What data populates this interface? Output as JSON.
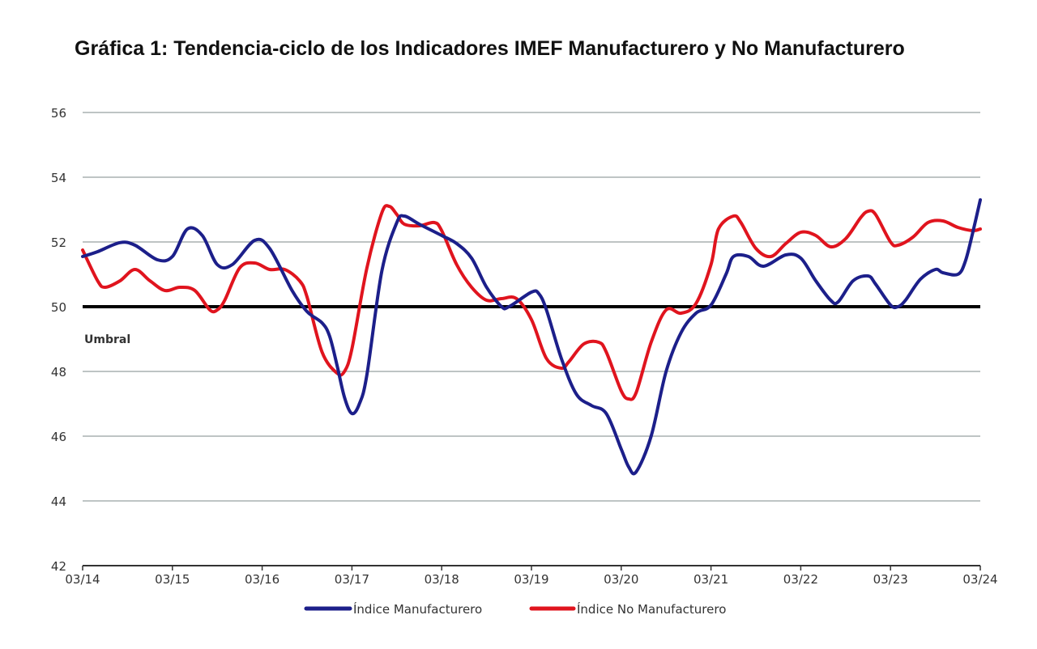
{
  "title": "Gráfica 1: Tendencia-ciclo de los Indicadores IMEF Manufacturero y No Manufacturero",
  "chart_data": {
    "type": "line",
    "title": "Gráfica 1: Tendencia-ciclo de los Indicadores IMEF Manufacturero y No Manufacturero",
    "xlabel": "",
    "ylabel": "",
    "x_unit": "months since 03/14",
    "xlim": [
      0,
      120
    ],
    "ylim": [
      42,
      56
    ],
    "x_ticks": [
      {
        "value": 0,
        "label": "03/14"
      },
      {
        "value": 12,
        "label": "03/15"
      },
      {
        "value": 24,
        "label": "03/16"
      },
      {
        "value": 36,
        "label": "03/17"
      },
      {
        "value": 48,
        "label": "03/18"
      },
      {
        "value": 60,
        "label": "03/19"
      },
      {
        "value": 72,
        "label": "03/20"
      },
      {
        "value": 84,
        "label": "03/21"
      },
      {
        "value": 96,
        "label": "03/22"
      },
      {
        "value": 108,
        "label": "03/23"
      },
      {
        "value": 120,
        "label": "03/24"
      }
    ],
    "y_ticks": [
      42,
      44,
      46,
      48,
      50,
      52,
      54,
      56
    ],
    "grid": true,
    "threshold": {
      "value": 50,
      "label": "Umbral"
    },
    "legend_position": "bottom",
    "series": [
      {
        "name": "Índice Manufacturero",
        "color": "#1c1f8a",
        "x": [
          0,
          2,
          5,
          7,
          10,
          12,
          14,
          16,
          18,
          20,
          23,
          25,
          28,
          30,
          32,
          33,
          34,
          35,
          36,
          37,
          38,
          40,
          42,
          43,
          45,
          48,
          50,
          52,
          54,
          56,
          57,
          60,
          61,
          62,
          64,
          66,
          68,
          70,
          72,
          73,
          74,
          76,
          78,
          80,
          82,
          84,
          86,
          87,
          89,
          91,
          94,
          96,
          98,
          100,
          101,
          103,
          105,
          106,
          108,
          109,
          110,
          112,
          114,
          115,
          117,
          118,
          119,
          120
        ],
        "y": [
          51.55,
          51.7,
          51.98,
          51.9,
          51.45,
          51.55,
          52.4,
          52.2,
          51.3,
          51.3,
          52.05,
          51.8,
          50.5,
          49.85,
          49.5,
          49.1,
          48.2,
          47.2,
          46.7,
          47.0,
          47.9,
          51.1,
          52.6,
          52.8,
          52.55,
          52.2,
          51.95,
          51.5,
          50.6,
          50.0,
          50.0,
          50.45,
          50.4,
          49.9,
          48.4,
          47.3,
          46.95,
          46.7,
          45.6,
          45.05,
          44.9,
          46.0,
          48.0,
          49.2,
          49.8,
          50.05,
          51.0,
          51.55,
          51.55,
          51.25,
          51.6,
          51.5,
          50.8,
          50.2,
          50.15,
          50.8,
          50.95,
          50.7,
          50.05,
          50.0,
          50.2,
          50.85,
          51.15,
          51.05,
          51.0,
          51.4,
          52.3,
          53.3
        ]
      },
      {
        "name": "Índice No Manufacturero",
        "color": "#e0141e",
        "x": [
          0,
          2,
          3,
          5,
          7,
          9,
          11,
          13,
          15,
          17,
          18,
          19,
          21,
          23,
          25,
          27,
          29,
          30,
          32,
          34,
          35,
          36,
          38,
          40,
          41,
          42,
          43,
          45,
          47,
          48,
          50,
          52,
          54,
          56,
          58,
          60,
          62,
          64,
          65,
          67,
          69,
          70,
          72,
          73,
          74,
          76,
          78,
          80,
          82,
          84,
          85,
          87,
          88,
          90,
          92,
          94,
          96,
          98,
          100,
          102,
          104,
          105,
          106,
          108,
          109,
          111,
          113,
          115,
          117,
          119,
          120
        ],
        "y": [
          51.75,
          50.8,
          50.6,
          50.8,
          51.15,
          50.8,
          50.5,
          50.6,
          50.5,
          49.9,
          49.9,
          50.2,
          51.2,
          51.35,
          51.15,
          51.15,
          50.8,
          50.3,
          48.6,
          47.95,
          48.0,
          48.7,
          51.2,
          52.9,
          53.1,
          52.85,
          52.55,
          52.5,
          52.6,
          52.35,
          51.3,
          50.6,
          50.2,
          50.25,
          50.25,
          49.6,
          48.4,
          48.1,
          48.3,
          48.85,
          48.9,
          48.6,
          47.4,
          47.15,
          47.35,
          48.9,
          49.9,
          49.8,
          50.1,
          51.3,
          52.4,
          52.8,
          52.6,
          51.8,
          51.55,
          51.95,
          52.3,
          52.2,
          51.85,
          52.1,
          52.75,
          52.95,
          52.85,
          52.0,
          51.9,
          52.15,
          52.6,
          52.65,
          52.45,
          52.35,
          52.4
        ]
      }
    ]
  }
}
